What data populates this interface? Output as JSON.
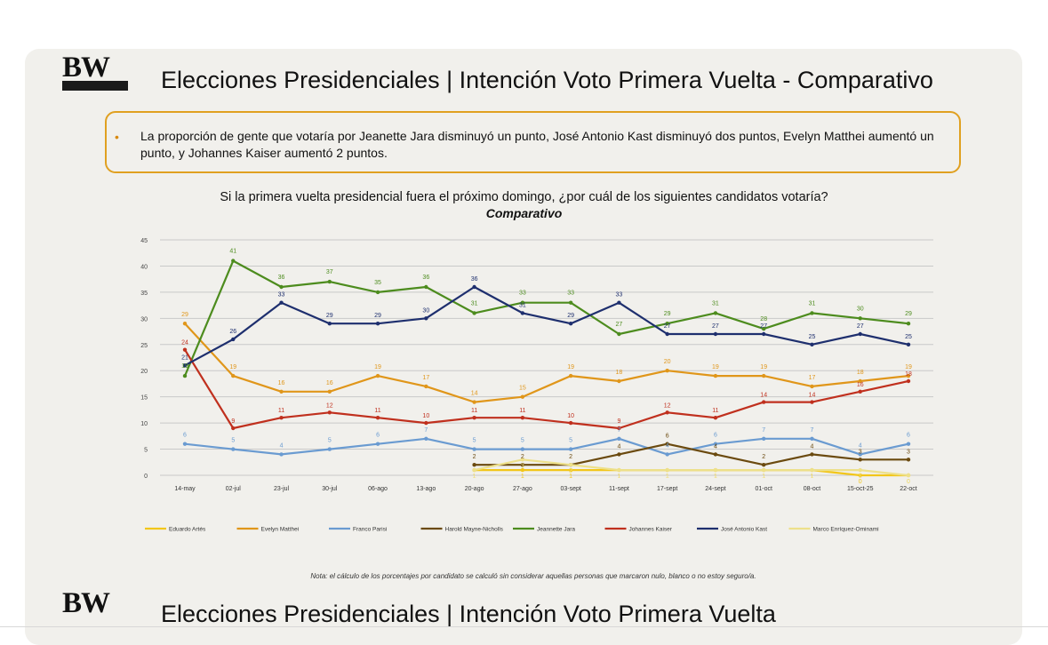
{
  "header": {
    "logo_text": "BW",
    "title": "Elecciones Presidenciales | Intención Voto Primera Vuelta - Comparativo"
  },
  "callout": {
    "bullet": "•",
    "text": "La proporción de gente que votaría por Jeanette Jara disminuyó un punto, José Antonio Kast disminuyó dos puntos, Evelyn Matthei aumentó un punto, y Johannes Kaiser aumentó 2 puntos."
  },
  "footer": {
    "note": "Nota: el cálculo de los porcentajes por candidato se calculó sin considerar aquellas personas que marcaron nulo, blanco o no estoy seguro/a.",
    "logo_text": "BW",
    "next_title": "Elecciones Presidenciales | Intención Voto Primera Vuelta"
  },
  "chart_data": {
    "type": "line",
    "title": "Si la primera vuelta presidencial fuera el próximo domingo, ¿por cuál de los siguientes candidatos votaría?",
    "subtitle": "Comparativo",
    "xlabel": "",
    "ylabel": "",
    "ylim": [
      0,
      45
    ],
    "yticks": [
      0,
      5,
      10,
      15,
      20,
      25,
      30,
      35,
      40,
      45
    ],
    "grid": true,
    "legend_position": "bottom",
    "categories": [
      "14-may",
      "02-jul",
      "23-jul",
      "30-jul",
      "06-ago",
      "13-ago",
      "20-ago",
      "27-ago",
      "03-sept",
      "11-sept",
      "17-sept",
      "24-sept",
      "01-oct",
      "08-oct",
      "15-oct-25",
      "22-oct"
    ],
    "series": [
      {
        "name": "Eduardo Artés",
        "color": "#f2c61a",
        "values": [
          null,
          null,
          null,
          null,
          null,
          null,
          1,
          1,
          1,
          1,
          1,
          1,
          1,
          1,
          0,
          0
        ]
      },
      {
        "name": "Evelyn Matthei",
        "color": "#e0961a",
        "values": [
          29,
          19,
          16,
          16,
          19,
          17,
          14,
          15,
          19,
          18,
          20,
          19,
          19,
          17,
          18,
          19
        ]
      },
      {
        "name": "Franco Parisi",
        "color": "#6a9bd1",
        "values": [
          6,
          5,
          4,
          5,
          6,
          7,
          5,
          5,
          5,
          7,
          4,
          6,
          7,
          7,
          4,
          6
        ]
      },
      {
        "name": "Harold Mayne-Nicholls",
        "color": "#6b4a0f",
        "values": [
          null,
          null,
          null,
          null,
          null,
          null,
          2,
          2,
          2,
          4,
          6,
          4,
          2,
          4,
          3,
          3
        ]
      },
      {
        "name": "Jeannette Jara",
        "color": "#4d8c1e",
        "values": [
          19,
          41,
          36,
          37,
          35,
          36,
          31,
          33,
          33,
          27,
          29,
          31,
          28,
          31,
          30,
          29
        ]
      },
      {
        "name": "Johannes Kaiser",
        "color": "#c0301e",
        "values": [
          24,
          9,
          11,
          12,
          11,
          10,
          11,
          11,
          10,
          9,
          12,
          11,
          14,
          14,
          16,
          18
        ]
      },
      {
        "name": "José Antonio Kast",
        "color": "#1e2f6e",
        "values": [
          21,
          26,
          33,
          29,
          29,
          30,
          36,
          31,
          29,
          33,
          27,
          27,
          27,
          25,
          27,
          25
        ]
      },
      {
        "name": "Marco Enríquez-Ominami",
        "color": "#ede08a",
        "values": [
          null,
          null,
          null,
          null,
          null,
          null,
          1,
          3,
          2,
          1,
          1,
          1,
          1,
          1,
          1,
          0
        ]
      }
    ]
  }
}
